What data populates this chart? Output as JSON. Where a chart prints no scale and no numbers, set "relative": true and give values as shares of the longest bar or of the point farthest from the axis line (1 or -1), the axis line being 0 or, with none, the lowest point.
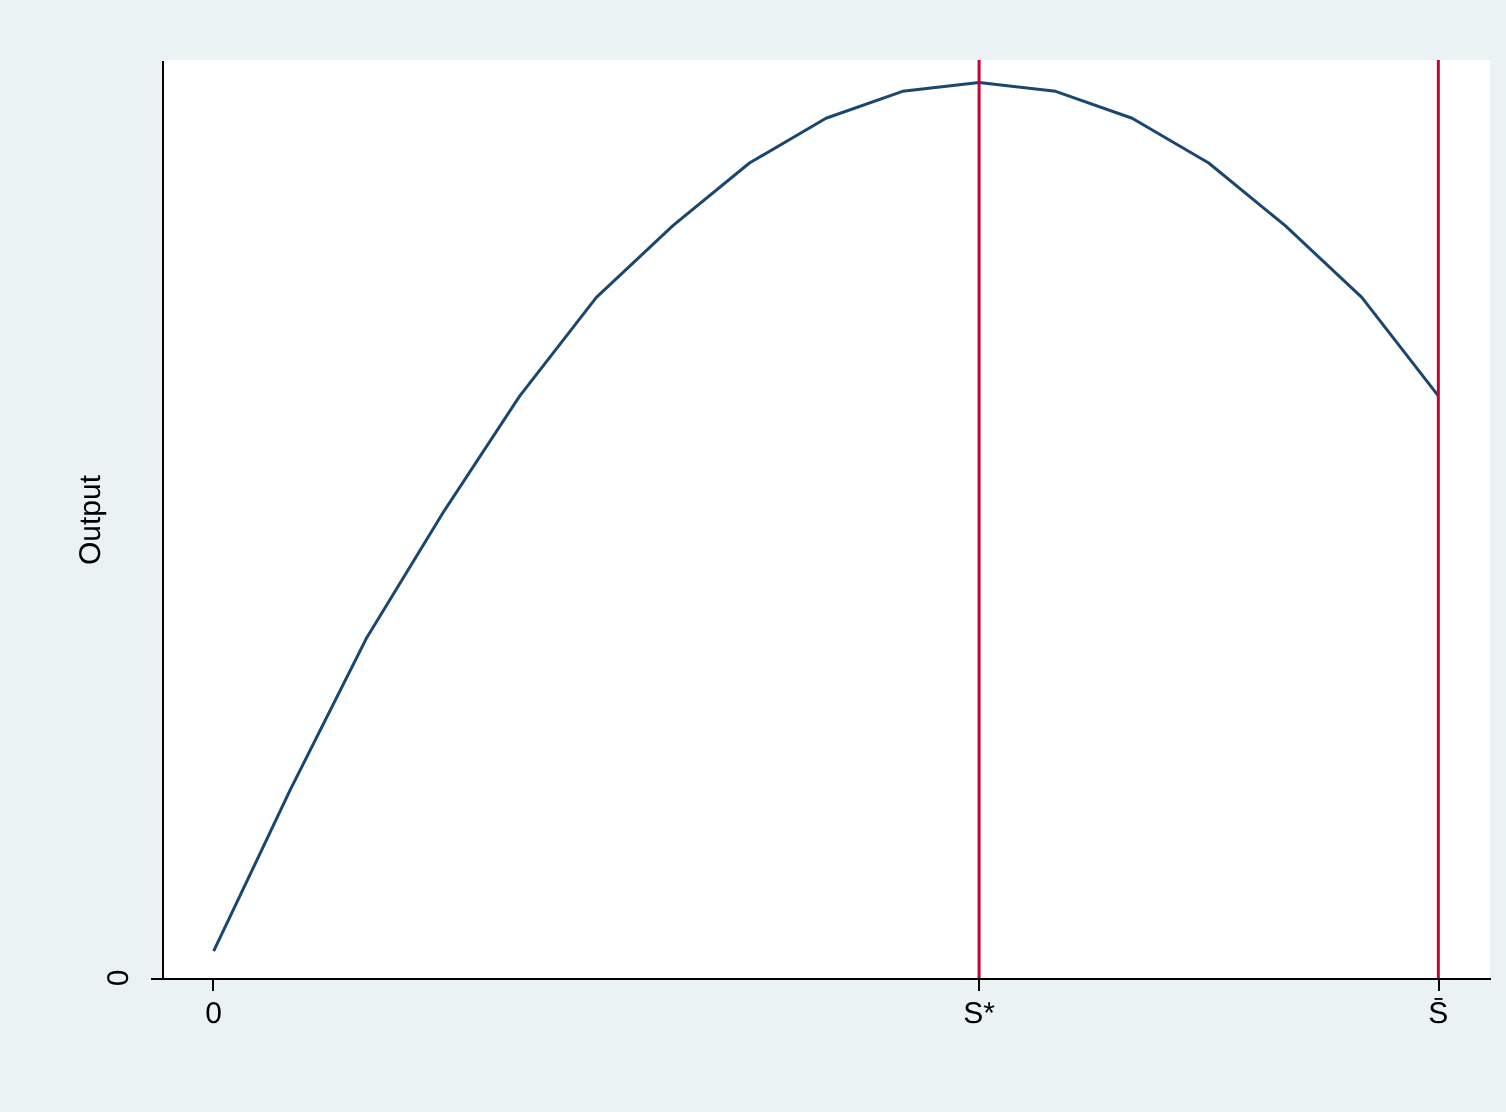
{
  "chart_data": {
    "type": "line",
    "ylabel": "Output",
    "relative": true,
    "categories": [
      "0",
      null,
      null,
      null,
      null,
      null,
      null,
      null,
      null,
      null,
      "S*",
      null,
      null,
      null,
      null,
      null,
      "S̄"
    ],
    "series": [
      {
        "color": "#1a476f",
        "values": [
          0.03,
          0.21,
          0.38,
          0.52,
          0.65,
          0.76,
          0.84,
          0.91,
          0.96,
          0.99,
          1,
          0.99,
          0.96,
          0.91,
          0.84,
          0.76,
          0.65
        ]
      }
    ],
    "ref_lines": [
      {
        "axis": "x",
        "value": "S*",
        "color": "#c10534"
      },
      {
        "axis": "x",
        "value": "S̄",
        "color": "#c10534"
      }
    ],
    "annotations": [
      "0"
    ],
    "grid": false,
    "legend": false,
    "marker": "none",
    "line_style": "solid"
  }
}
